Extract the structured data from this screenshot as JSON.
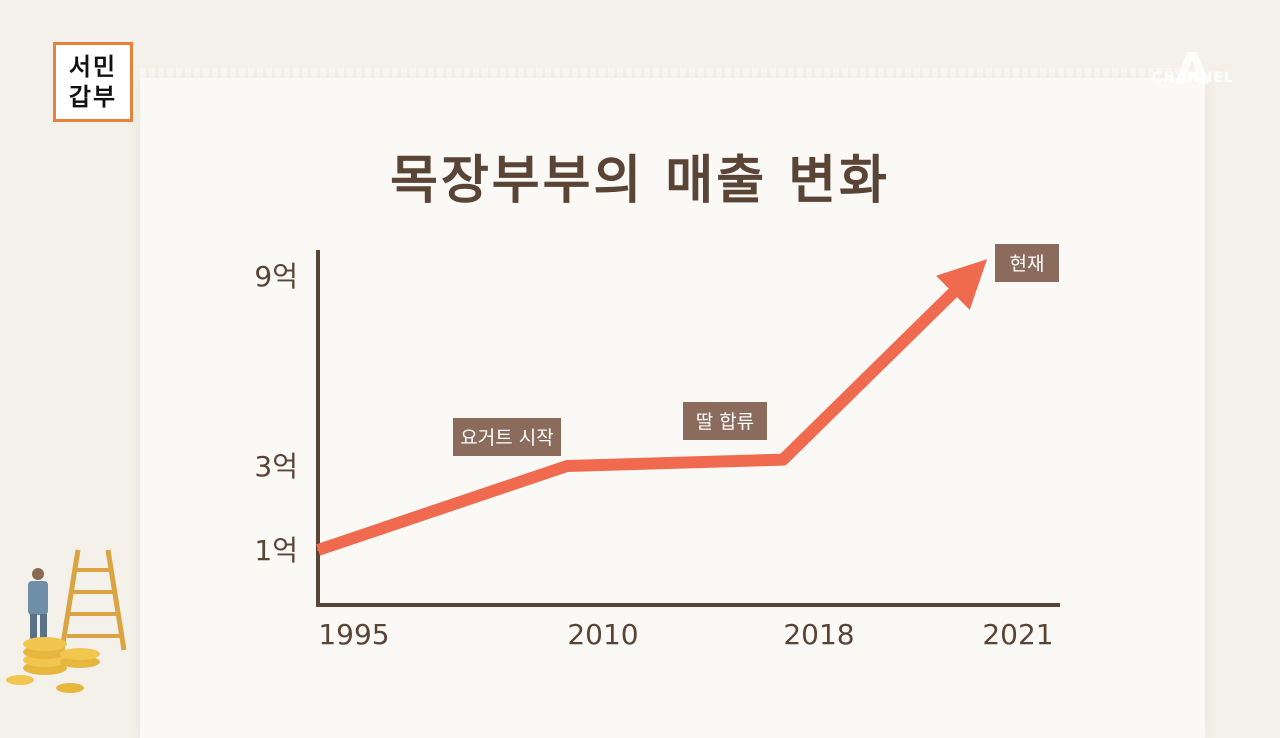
{
  "logo": {
    "line1": "서민",
    "line2": "갑부"
  },
  "broadcaster": {
    "symbol": "A",
    "name": "CHANNEL"
  },
  "chart_data": {
    "type": "line",
    "title": "목장부부의 매출 변화",
    "categories": [
      "1995",
      "2010",
      "2018",
      "2021"
    ],
    "yticks": [
      "1억",
      "3억",
      "9억"
    ],
    "series": [
      {
        "values": [
          1,
          3,
          3.2,
          9
        ]
      }
    ],
    "annotations": [
      {
        "text": "요거트 시작",
        "category": "2010"
      },
      {
        "text": "딸 합류",
        "category": "2018"
      },
      {
        "text": "현재",
        "category": "2021"
      }
    ],
    "colors": {
      "line": "#f06a4f",
      "axis": "#5a4436",
      "label_bg": "#8a6b5c",
      "label_text": "#ffffff"
    }
  }
}
